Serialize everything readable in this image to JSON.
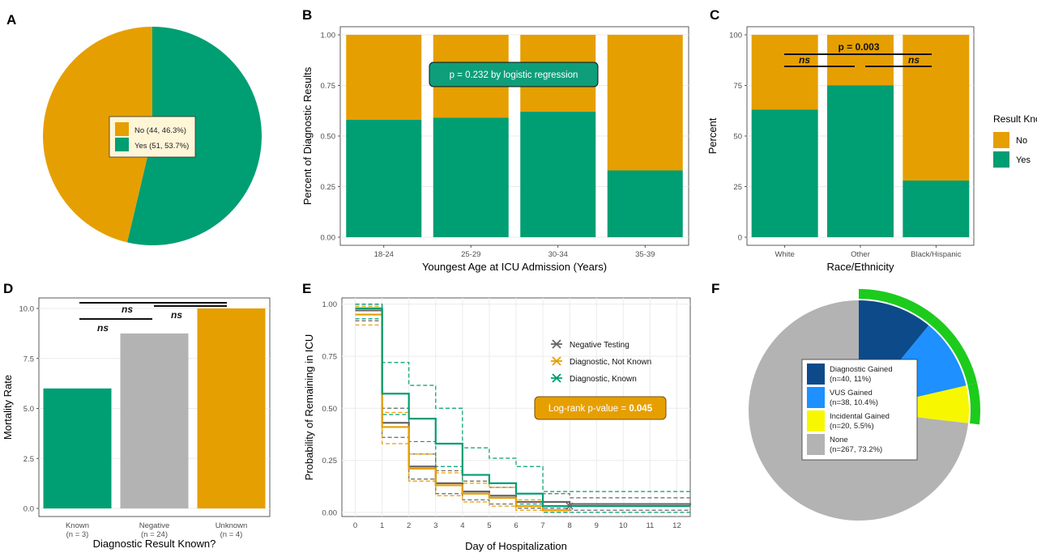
{
  "colors": {
    "no": "#E69F00",
    "yes": "#009E73",
    "negative": "#B3B3B3",
    "dark": "#666666",
    "dx_gained": "#0D4A8A",
    "vus_gained": "#1E90FF",
    "incidental_gained": "#F7F700",
    "none": "#B3B3B3",
    "ring": "#1CCB1C",
    "panel_bg": "#FFFFFF",
    "grid": "#EBEBEB"
  },
  "chart_data": [
    {
      "panel": "A",
      "type": "pie",
      "slices": [
        {
          "label": "No (44, 46.3%)",
          "value": 44,
          "color": "#E69F00"
        },
        {
          "label": "Yes (51, 53.7%)",
          "value": 51,
          "color": "#009E73"
        }
      ]
    },
    {
      "panel": "B",
      "type": "bar",
      "xlabel": "Youngest Age at ICU Admission (Years)",
      "ylabel": "Percent of Diagnostic Results",
      "categories": [
        "18-24",
        "25-29",
        "30-34",
        "35-39"
      ],
      "series": [
        {
          "name": "Yes",
          "values": [
            0.58,
            0.59,
            0.62,
            0.33
          ]
        }
      ],
      "ylim": [
        0,
        1
      ],
      "yticks": [
        "0.00",
        "0.25",
        "0.50",
        "0.75",
        "1.00"
      ],
      "annotation": "p = 0.232 by logistic regression"
    },
    {
      "panel": "C",
      "type": "bar",
      "xlabel": "Race/Ethnicity",
      "ylabel": "Percent",
      "categories": [
        "White",
        "Other",
        "Black/Hispanic"
      ],
      "series": [
        {
          "name": "Yes",
          "values": [
            63,
            75,
            28
          ]
        }
      ],
      "ylim": [
        0,
        100
      ],
      "yticks": [
        "0",
        "25",
        "50",
        "75",
        "100"
      ],
      "legend_title": "Result Known?",
      "legend": [
        {
          "label": "No",
          "color": "#E69F00"
        },
        {
          "label": "Yes",
          "color": "#009E73"
        }
      ],
      "annotations": [
        "p = 0.003",
        "ns",
        "ns"
      ]
    },
    {
      "panel": "D",
      "type": "bar",
      "xlabel": "Diagnostic Result Known?",
      "ylabel": "Mortality Rate",
      "categories": [
        "Known",
        "Negative",
        "Unknown"
      ],
      "sublabels": [
        "(n = 3)",
        "(n = 24)",
        "(n = 4)"
      ],
      "values": [
        6.0,
        8.75,
        10.0
      ],
      "colors": [
        "#009E73",
        "#B3B3B3",
        "#E69F00"
      ],
      "ylim": [
        0,
        10
      ],
      "yticks": [
        "0.0",
        "2.5",
        "5.0",
        "7.5",
        "10.0"
      ],
      "annotations": [
        "ns",
        "ns",
        "ns"
      ]
    },
    {
      "panel": "E",
      "type": "line",
      "xlabel": "Day of Hospitalization",
      "ylabel": "Probability of Remaining in ICU",
      "xticks": [
        "0",
        "1",
        "2",
        "3",
        "4",
        "5",
        "6",
        "7",
        "8",
        "9",
        "10",
        "11",
        "12"
      ],
      "yticks": [
        "0.00",
        "0.25",
        "0.50",
        "0.75",
        "1.00"
      ],
      "xlim": [
        -0.5,
        12.5
      ],
      "ylim": [
        -0.02,
        1.03
      ],
      "series": [
        {
          "name": "Negative Testing",
          "color": "#666666",
          "x": [
            0,
            1,
            2,
            3,
            4,
            5,
            6,
            8,
            12.5
          ],
          "y": [
            0.97,
            0.43,
            0.22,
            0.14,
            0.1,
            0.08,
            0.05,
            0.04,
            0.035
          ],
          "lower": [
            0.92,
            0.36,
            0.16,
            0.09,
            0.06,
            0.04,
            0.02,
            0.01,
            0.01
          ],
          "upper": [
            1.0,
            0.5,
            0.28,
            0.2,
            0.15,
            0.12,
            0.09,
            0.07,
            0.06
          ]
        },
        {
          "name": "Diagnostic, Not Known",
          "color": "#E69F00",
          "x": [
            0,
            1,
            2,
            3,
            4,
            5,
            6,
            7,
            8
          ],
          "y": [
            0.95,
            0.41,
            0.21,
            0.13,
            0.09,
            0.07,
            0.03,
            0.01,
            0.01
          ],
          "lower": [
            0.9,
            0.33,
            0.15,
            0.08,
            0.05,
            0.03,
            0.01,
            0.0,
            0.0
          ],
          "upper": [
            0.99,
            0.48,
            0.28,
            0.19,
            0.14,
            0.12,
            0.06,
            0.03,
            0.03
          ]
        },
        {
          "name": "Diagnostic, Known",
          "color": "#009E73",
          "x": [
            0,
            1,
            2,
            3,
            4,
            5,
            6,
            7,
            8,
            12.5
          ],
          "y": [
            0.98,
            0.57,
            0.45,
            0.33,
            0.18,
            0.14,
            0.09,
            0.03,
            0.03,
            0.03
          ],
          "lower": [
            0.93,
            0.47,
            0.34,
            0.22,
            0.1,
            0.08,
            0.04,
            0.0,
            0.0,
            0.0
          ],
          "upper": [
            1.0,
            0.72,
            0.61,
            0.5,
            0.31,
            0.26,
            0.22,
            0.1,
            0.1,
            0.1
          ]
        }
      ],
      "annotation_prefix": "Log-rank p-value = ",
      "annotation_value": "0.045"
    },
    {
      "panel": "F",
      "type": "pie",
      "slices": [
        {
          "label": "Diagnostic Gained",
          "detail": "(n=40, 11%)",
          "value": 40,
          "color": "#0D4A8A"
        },
        {
          "label": "VUS Gained",
          "detail": "(n=38, 10.4%)",
          "value": 38,
          "color": "#1E90FF"
        },
        {
          "label": "Incidental Gained",
          "detail": "(n=20, 5.5%)",
          "value": 20,
          "color": "#F7F700"
        },
        {
          "label": "None",
          "detail": "(n=267, 73.2%)",
          "value": 267,
          "color": "#B3B3B3"
        }
      ]
    }
  ],
  "panel_labels": [
    "A",
    "B",
    "C",
    "D",
    "E",
    "F"
  ]
}
